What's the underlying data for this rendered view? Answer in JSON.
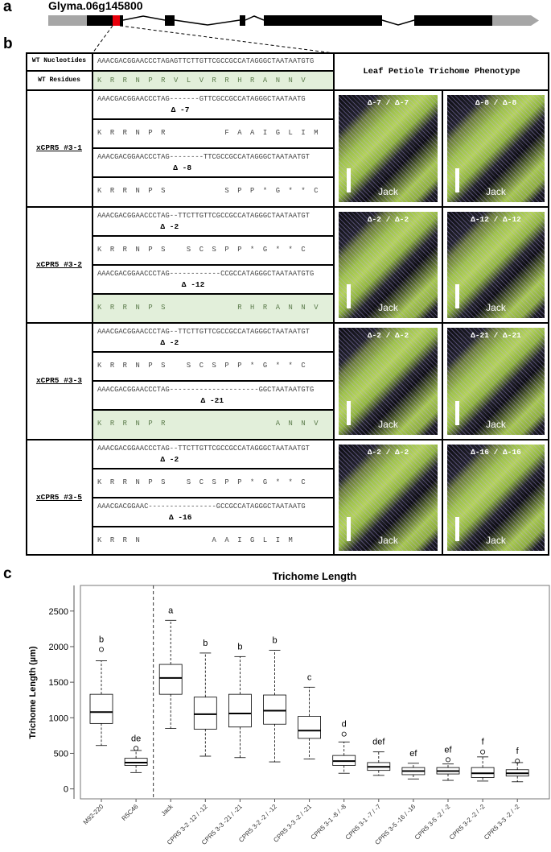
{
  "panel_a": {
    "label": "a",
    "gene": "Glyma.06g145800"
  },
  "panel_b": {
    "label": "b",
    "wt_nucleotides_label": "WT Nucleotides",
    "wt_residues_label": "WT Residues",
    "phenotype_header": "Leaf Petiole Trichome Phenotype",
    "wt_nucleotides": "AAACGACGGAACCCTAGAGTTCTTGTTCGCCGCCATAGGGCTAATAATGTG",
    "wt_residues": "K  R  R  N  P  R  V  L  V  R  R  H  R  A  N  N  V",
    "groups": [
      {
        "name": "xCPR5 #3-1",
        "alleles": [
          {
            "nucleotides": "AAACGACGGAACCCTAG-------GTTCGCCGCCATAGGGCTAATAATG",
            "deletion": "Δ -7",
            "residues": "K  R  R  N  P  R              F  A  A  I  G  L  I  M",
            "highlight": false
          },
          {
            "nucleotides": "AAACGACGGAACCCTAG--------TTCGCCGCCATAGGGCTAATAATGT",
            "deletion": "Δ -8",
            "residues": "K  R  R  N  P  S              S  P  P  *  G  *  *  C",
            "highlight": false
          }
        ],
        "photos": [
          {
            "genotype": "Δ-7 / Δ-7",
            "background": "Jack"
          },
          {
            "genotype": "Δ-8 / Δ-8",
            "background": "Jack"
          }
        ]
      },
      {
        "name": "xCPR5 #3-2",
        "alleles": [
          {
            "nucleotides": "AAACGACGGAACCCTAG--TTCTTGTTCGCCGCCATAGGGCTAATAATGT",
            "deletion": "Δ -2",
            "residues": "K  R  R  N  P  S     S  C  S  P  P  *  G  *  *  C",
            "highlight": false
          },
          {
            "nucleotides": "AAACGACGGAACCCTAG------------CCGCCATAGGGCTAATAATGTG",
            "deletion": "Δ -12",
            "residues": "K  R  R  N  P  S                 R  H  R  A  N  N  V",
            "highlight": true
          }
        ],
        "photos": [
          {
            "genotype": "Δ-2 / Δ-2",
            "background": "Jack"
          },
          {
            "genotype": "Δ-12 / Δ-12",
            "background": "Jack"
          }
        ]
      },
      {
        "name": "xCPR5 #3-3",
        "alleles": [
          {
            "nucleotides": "AAACGACGGAACCCTAG--TTCTTGTTCGCCGCCATAGGGCTAATAATGT",
            "deletion": "Δ -2",
            "residues": "K  R  R  N  P  S     S  C  S  P  P  *  G  *  *  C",
            "highlight": false
          },
          {
            "nucleotides": "AAACGACGGAACCCTAG---------------------GGCTAATAATGTG",
            "deletion": "Δ -21",
            "residues": "K  R  R  N  P  R                          A  N  N  V",
            "highlight": true
          }
        ],
        "photos": [
          {
            "genotype": "Δ-2 / Δ-2",
            "background": "Jack"
          },
          {
            "genotype": "Δ-21 / Δ-21",
            "background": "Jack"
          }
        ]
      },
      {
        "name": "xCPR5 #3-5",
        "alleles": [
          {
            "nucleotides": "AAACGACGGAACCCTAG--TTCTTGTTCGCCGCCATAGGGCTAATAATGT",
            "deletion": "Δ -2",
            "residues": "K  R  R  N  P  S     S  C  S  P  P  *  G  *  *  C",
            "highlight": false
          },
          {
            "nucleotides": "AAACGACGGAAC----------------GCCGCCATAGGGCTAATAATG",
            "deletion": "Δ -16",
            "residues": "K  R  R  N                 A  A  I  G  L  I  M",
            "highlight": false
          }
        ],
        "photos": [
          {
            "genotype": "Δ-2 / Δ-2",
            "background": "Jack"
          },
          {
            "genotype": "Δ-16 / Δ-16",
            "background": "Jack"
          }
        ]
      }
    ]
  },
  "chart_data": {
    "type": "box",
    "label": "c",
    "title": "Trichome Length",
    "y_label": "Trichome Length (µm)",
    "categories": [
      "M92-220",
      "R5C46",
      "Jack",
      "CPR5 3-2 -12 / -12",
      "CPR5 3-3 -21 / -21",
      "CPR5 3-2 -2 / -12",
      "CPR5 3-3 -2 / -21",
      "CPR5 3-1 -8 / -8",
      "CPR5 3-1 -7 / -7",
      "CPR5 3-5 -16 / -16",
      "CPR5 3-5 -2 / -2",
      "CPR5 3-2 -2 / -2",
      "CPR5 3-3 -2 / -2"
    ],
    "whisker_low": [
      610,
      230,
      850,
      460,
      440,
      380,
      420,
      220,
      190,
      140,
      120,
      110,
      100
    ],
    "q1": [
      920,
      330,
      1330,
      840,
      870,
      910,
      710,
      330,
      260,
      200,
      210,
      160,
      180
    ],
    "median": [
      1080,
      370,
      1560,
      1050,
      1060,
      1100,
      820,
      390,
      310,
      250,
      250,
      220,
      220
    ],
    "q3": [
      1330,
      430,
      1750,
      1290,
      1330,
      1320,
      1020,
      470,
      370,
      300,
      300,
      300,
      270
    ],
    "whisker_high": [
      1800,
      540,
      2370,
      1910,
      1860,
      1950,
      1430,
      660,
      520,
      360,
      350,
      450,
      370
    ],
    "outliers": [
      [
        1960
      ],
      [
        570
      ],
      [],
      [],
      [],
      [],
      [],
      [
        770
      ],
      [],
      [],
      [
        410
      ],
      [
        520
      ],
      [
        390
      ]
    ],
    "letters": [
      "b",
      "de",
      "a",
      "b",
      "b",
      "b",
      "c",
      "d",
      "def",
      "ef",
      "ef",
      "f",
      "f"
    ],
    "color": "#000000",
    "ylim": [
      -140,
      2860
    ],
    "yticks": [
      0,
      500,
      1000,
      1500,
      2000,
      2500
    ]
  }
}
